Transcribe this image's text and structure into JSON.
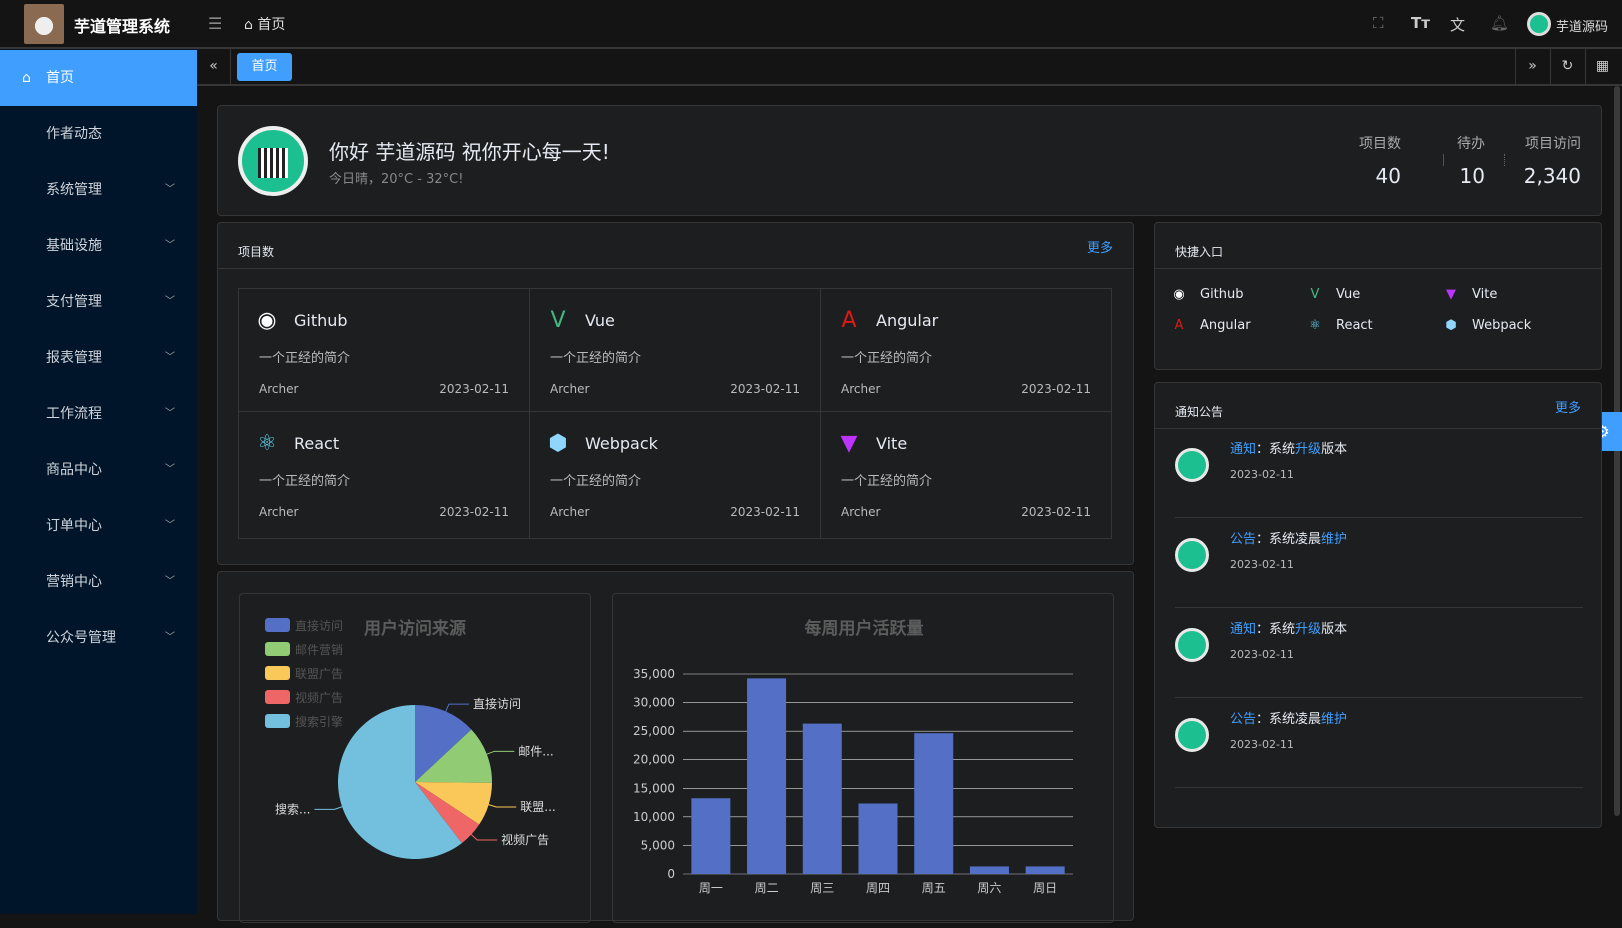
{
  "header": {
    "app_title": "芋道管理系统",
    "breadcrumb": "首页",
    "user_name": "芋道源码",
    "icons": [
      "fullscreen-icon",
      "font-size-icon",
      "translate-icon",
      "bell-icon"
    ]
  },
  "sidebar": {
    "items": [
      {
        "label": "首页",
        "active": true
      },
      {
        "label": "作者动态"
      },
      {
        "label": "系统管理"
      },
      {
        "label": "基础设施"
      },
      {
        "label": "支付管理"
      },
      {
        "label": "报表管理"
      },
      {
        "label": "工作流程"
      },
      {
        "label": "商品中心"
      },
      {
        "label": "订单中心"
      },
      {
        "label": "营销中心"
      },
      {
        "label": "公众号管理"
      }
    ]
  },
  "tabs": [
    {
      "label": "首页",
      "active": true
    }
  ],
  "welcome": {
    "greeting": "你好 芋道源码 祝你开心每一天!",
    "weather": "今日晴，20°C - 32°C!",
    "stats": [
      {
        "label": "项目数",
        "value": "40"
      },
      {
        "label": "待办",
        "value": "10"
      },
      {
        "label": "项目访问",
        "value": "2,340"
      }
    ]
  },
  "projects": {
    "title": "项目数",
    "more": "更多",
    "items": [
      {
        "name": "Github",
        "desc": "一个正经的简介",
        "author": "Archer",
        "date": "2023-02-11",
        "icon": "github-icon",
        "color": "#ffffff",
        "glyph": "◉"
      },
      {
        "name": "Vue",
        "desc": "一个正经的简介",
        "author": "Archer",
        "date": "2023-02-11",
        "icon": "vue-icon",
        "color": "#42b883",
        "glyph": "V"
      },
      {
        "name": "Angular",
        "desc": "一个正经的简介",
        "author": "Archer",
        "date": "2023-02-11",
        "icon": "angular-icon",
        "color": "#dd1b16",
        "glyph": "A"
      },
      {
        "name": "React",
        "desc": "一个正经的简介",
        "author": "Archer",
        "date": "2023-02-11",
        "icon": "react-icon",
        "color": "#61dafb",
        "glyph": "⚛"
      },
      {
        "name": "Webpack",
        "desc": "一个正经的简介",
        "author": "Archer",
        "date": "2023-02-11",
        "icon": "webpack-icon",
        "color": "#8ed6fb",
        "glyph": "⬢"
      },
      {
        "name": "Vite",
        "desc": "一个正经的简介",
        "author": "Archer",
        "date": "2023-02-11",
        "icon": "vite-icon",
        "color": "#bd34fe",
        "glyph": "▼"
      }
    ]
  },
  "shortcuts": {
    "title": "快捷入口",
    "items": [
      {
        "name": "Github",
        "glyph": "◉",
        "color": "#ffffff"
      },
      {
        "name": "Vue",
        "glyph": "V",
        "color": "#42b883"
      },
      {
        "name": "Vite",
        "glyph": "▼",
        "color": "#bd34fe"
      },
      {
        "name": "Angular",
        "glyph": "A",
        "color": "#dd1b16"
      },
      {
        "name": "React",
        "glyph": "⚛",
        "color": "#61dafb"
      },
      {
        "name": "Webpack",
        "glyph": "⬢",
        "color": "#8ed6fb"
      }
    ]
  },
  "notices": {
    "title": "通知公告",
    "more": "更多",
    "items": [
      {
        "type": "通知",
        "sep": "：",
        "pre": "系统",
        "hl": "升级",
        "post": "版本",
        "date": "2023-02-11"
      },
      {
        "type": "公告",
        "sep": "：",
        "pre": "系统凌晨",
        "hl": "维护",
        "post": "",
        "date": "2023-02-11"
      },
      {
        "type": "通知",
        "sep": "：",
        "pre": "系统",
        "hl": "升级",
        "post": "版本",
        "date": "2023-02-11"
      },
      {
        "type": "公告",
        "sep": "：",
        "pre": "系统凌晨",
        "hl": "维护",
        "post": "",
        "date": "2023-02-11"
      }
    ]
  },
  "chart_data": [
    {
      "type": "pie",
      "title": "用户访问来源",
      "legend": "top-left",
      "categories": [
        "直接访问",
        "邮件营销",
        "联盟广告",
        "视频广告",
        "搜索引擎"
      ],
      "labels": [
        "直接访问",
        "邮件...",
        "联盟...",
        "视频广告",
        "搜索..."
      ],
      "values": [
        335,
        310,
        234,
        135,
        1548
      ],
      "colors": [
        "#5470c6",
        "#91cc75",
        "#fac858",
        "#ee6666",
        "#73c0de"
      ]
    },
    {
      "type": "bar",
      "title": "每周用户活跃量",
      "categories": [
        "周一",
        "周二",
        "周三",
        "周四",
        "周五",
        "周六",
        "周日"
      ],
      "values": [
        13253,
        34235,
        26321,
        12340,
        24643,
        1322,
        1324
      ],
      "ylim": [
        0,
        35000
      ],
      "yticks": [
        "0",
        "5,000",
        "10,000",
        "15,000",
        "20,000",
        "25,000",
        "30,000",
        "35,000"
      ],
      "grid": true,
      "color": "#5470c6"
    }
  ]
}
